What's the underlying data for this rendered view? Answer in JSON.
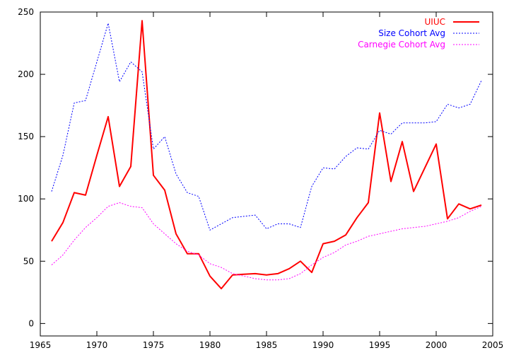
{
  "chart_data": {
    "type": "line",
    "title": "",
    "xlabel": "",
    "ylabel": "",
    "xlim": [
      1965,
      2005
    ],
    "ylim": [
      -10,
      250
    ],
    "x_ticks": [
      1965,
      1970,
      1975,
      1980,
      1985,
      1990,
      1995,
      2000,
      2005
    ],
    "y_ticks": [
      0,
      50,
      100,
      150,
      200,
      250
    ],
    "legend_position": "top-right",
    "grid": false,
    "x": [
      1966,
      1967,
      1968,
      1969,
      1970,
      1971,
      1972,
      1973,
      1974,
      1975,
      1976,
      1977,
      1978,
      1979,
      1980,
      1981,
      1982,
      1983,
      1984,
      1985,
      1986,
      1987,
      1988,
      1989,
      1990,
      1991,
      1992,
      1993,
      1994,
      1995,
      1996,
      1997,
      1998,
      1999,
      2000,
      2001,
      2002,
      2003,
      2004
    ],
    "series": [
      {
        "name": "UIUC",
        "color": "#ff0000",
        "style": "solid",
        "values": [
          66,
          81,
          105,
          103,
          135,
          166,
          110,
          126,
          243,
          119,
          107,
          72,
          56,
          56,
          38,
          28,
          39,
          39.5,
          40,
          39,
          40,
          44,
          50,
          41,
          64,
          66,
          71,
          85,
          97,
          169,
          114,
          146,
          106,
          125,
          144,
          84,
          96,
          92,
          95
        ]
      },
      {
        "name": "Size Cohort Avg",
        "color": "#0000ff",
        "style": "dotted",
        "values": [
          106,
          135,
          177,
          179,
          210,
          241,
          194,
          210,
          202,
          140,
          150,
          120,
          105,
          102,
          75,
          80,
          85,
          86,
          87,
          76,
          80,
          80,
          77,
          110,
          125,
          124,
          134,
          141,
          140,
          155,
          152,
          161,
          161,
          161,
          162,
          176,
          173,
          176,
          195
        ]
      },
      {
        "name": "Carnegie Cohort Avg",
        "color": "#ff00ff",
        "style": "dotted",
        "values": [
          47,
          55,
          67,
          77,
          85,
          94,
          97,
          94,
          93,
          80,
          72,
          64,
          58,
          55,
          48,
          45,
          40,
          38,
          36,
          35,
          35,
          36,
          40,
          47,
          53,
          57,
          63,
          66,
          70,
          72,
          74,
          76,
          77,
          78,
          80,
          82,
          85,
          90,
          94
        ]
      }
    ]
  }
}
